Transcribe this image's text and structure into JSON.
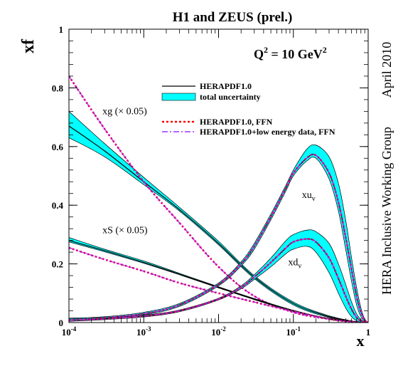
{
  "chart_data": {
    "type": "line",
    "title": "H1 and ZEUS (prel.)",
    "subtitle": "Q",
    "subtitle_exp": "2",
    "subtitle_rest": " = 10 GeV",
    "subtitle_rest_exp": "2",
    "xlabel": "x",
    "ylabel": "xf",
    "side_note_group": "HERA Inclusive Working Group",
    "side_note_date": "April 2010",
    "x_scale": "log",
    "xlim": [
      0.0001,
      1
    ],
    "ylim": [
      0,
      1
    ],
    "x_ticks": [
      {
        "base": "10",
        "exp": "-4"
      },
      {
        "base": "10",
        "exp": "-3"
      },
      {
        "base": "10",
        "exp": "-2"
      },
      {
        "base": "10",
        "exp": "-1"
      },
      {
        "base": "1",
        "exp": ""
      }
    ],
    "y_ticks": [
      "0",
      "0.2",
      "0.4",
      "0.6",
      "0.8",
      "1"
    ],
    "colors": {
      "central": "#000000",
      "band": "#00ffff",
      "ffn": "#ff0000",
      "low_energy": "#9933ff",
      "overlay_magenta": "#e0007a"
    },
    "legend": {
      "position": "top-center",
      "entries": [
        {
          "label": "HERAPDF1.0",
          "style": "line"
        },
        {
          "label": "total uncertainty",
          "style": "band"
        },
        {
          "label": "HERAPDF1.0, FFN",
          "style": "dotted-red"
        },
        {
          "label": "HERAPDF1.0+low energy data, FFN",
          "style": "dashdot-purple"
        }
      ]
    },
    "annotations": {
      "xg": {
        "text": "xg (",
        "times": "× 0.05)",
        "x": 0.00028,
        "y": 0.71
      },
      "xs": {
        "text": "xS (",
        "times": "× 0.05)",
        "x": 0.00028,
        "y": 0.305
      },
      "xuv": {
        "text": "xu",
        "sub": "v",
        "x": 0.13,
        "y": 0.425
      },
      "xdv": {
        "text": "xd",
        "sub": "v",
        "x": 0.085,
        "y": 0.195
      }
    },
    "series": [
      {
        "id": "xg",
        "x": [
          0.0001,
          0.0003,
          0.001,
          0.003,
          0.01,
          0.03,
          0.1,
          0.3,
          0.7,
          1
        ],
        "central": [
          0.67,
          0.585,
          0.48,
          0.385,
          0.27,
          0.155,
          0.065,
          0.02,
          0.002,
          0.0
        ],
        "band_lo": [
          0.63,
          0.565,
          0.47,
          0.38,
          0.265,
          0.15,
          0.06,
          0.017,
          0.001,
          0.0
        ],
        "band_hi": [
          0.72,
          0.61,
          0.495,
          0.393,
          0.277,
          0.16,
          0.07,
          0.023,
          0.003,
          0.0
        ],
        "ffn": [
          0.84,
          0.66,
          0.48,
          0.34,
          0.19,
          0.09,
          0.035,
          0.012,
          0.001,
          0.0
        ]
      },
      {
        "id": "xs",
        "x": [
          0.0001,
          0.0003,
          0.001,
          0.003,
          0.01,
          0.03,
          0.1,
          0.3,
          0.7,
          1
        ],
        "central": [
          0.28,
          0.245,
          0.205,
          0.165,
          0.12,
          0.08,
          0.04,
          0.012,
          0.001,
          0.0
        ],
        "band_lo": [
          0.275,
          0.241,
          0.202,
          0.163,
          0.118,
          0.078,
          0.038,
          0.011,
          0.001,
          0.0
        ],
        "band_hi": [
          0.29,
          0.25,
          0.21,
          0.168,
          0.122,
          0.082,
          0.042,
          0.014,
          0.002,
          0.0
        ],
        "ffn": [
          0.255,
          0.215,
          0.175,
          0.135,
          0.1,
          0.07,
          0.038,
          0.012,
          0.001,
          0.0
        ]
      },
      {
        "id": "xuv",
        "x": [
          0.0001,
          0.0003,
          0.001,
          0.003,
          0.01,
          0.02,
          0.03,
          0.05,
          0.08,
          0.1,
          0.15,
          0.2,
          0.3,
          0.4,
          0.5,
          0.6,
          0.7,
          0.8,
          0.9,
          1
        ],
        "central": [
          0.01,
          0.016,
          0.03,
          0.06,
          0.13,
          0.2,
          0.26,
          0.36,
          0.46,
          0.51,
          0.56,
          0.57,
          0.51,
          0.41,
          0.29,
          0.18,
          0.09,
          0.035,
          0.008,
          0.0
        ],
        "band_lo": [
          0.005,
          0.012,
          0.026,
          0.055,
          0.125,
          0.193,
          0.25,
          0.35,
          0.45,
          0.5,
          0.55,
          0.56,
          0.49,
          0.38,
          0.25,
          0.14,
          0.06,
          0.02,
          0.003,
          0.0
        ],
        "band_hi": [
          0.015,
          0.02,
          0.035,
          0.065,
          0.135,
          0.207,
          0.27,
          0.37,
          0.47,
          0.52,
          0.59,
          0.605,
          0.565,
          0.475,
          0.35,
          0.22,
          0.12,
          0.05,
          0.012,
          0.0
        ],
        "ffn": [
          0.01,
          0.016,
          0.03,
          0.06,
          0.13,
          0.2,
          0.26,
          0.36,
          0.46,
          0.51,
          0.56,
          0.57,
          0.51,
          0.41,
          0.29,
          0.18,
          0.09,
          0.035,
          0.008,
          0.0
        ]
      },
      {
        "id": "xdv",
        "x": [
          0.0001,
          0.0003,
          0.001,
          0.003,
          0.01,
          0.02,
          0.03,
          0.05,
          0.08,
          0.1,
          0.15,
          0.2,
          0.3,
          0.4,
          0.5,
          0.6,
          0.7,
          0.8,
          0.9,
          1
        ],
        "central": [
          0.008,
          0.013,
          0.022,
          0.04,
          0.08,
          0.12,
          0.155,
          0.205,
          0.255,
          0.275,
          0.285,
          0.275,
          0.22,
          0.15,
          0.09,
          0.045,
          0.018,
          0.005,
          0.001,
          0.0
        ],
        "band_lo": [
          0.004,
          0.01,
          0.019,
          0.037,
          0.077,
          0.115,
          0.147,
          0.19,
          0.235,
          0.25,
          0.26,
          0.24,
          0.17,
          0.1,
          0.05,
          0.02,
          0.006,
          0.001,
          0.0,
          0.0
        ],
        "band_hi": [
          0.012,
          0.016,
          0.025,
          0.043,
          0.083,
          0.125,
          0.163,
          0.22,
          0.28,
          0.3,
          0.315,
          0.31,
          0.27,
          0.2,
          0.13,
          0.07,
          0.03,
          0.01,
          0.002,
          0.0
        ],
        "ffn": [
          0.008,
          0.013,
          0.022,
          0.04,
          0.08,
          0.12,
          0.155,
          0.205,
          0.255,
          0.275,
          0.285,
          0.275,
          0.22,
          0.15,
          0.09,
          0.045,
          0.018,
          0.005,
          0.001,
          0.0
        ]
      }
    ]
  }
}
